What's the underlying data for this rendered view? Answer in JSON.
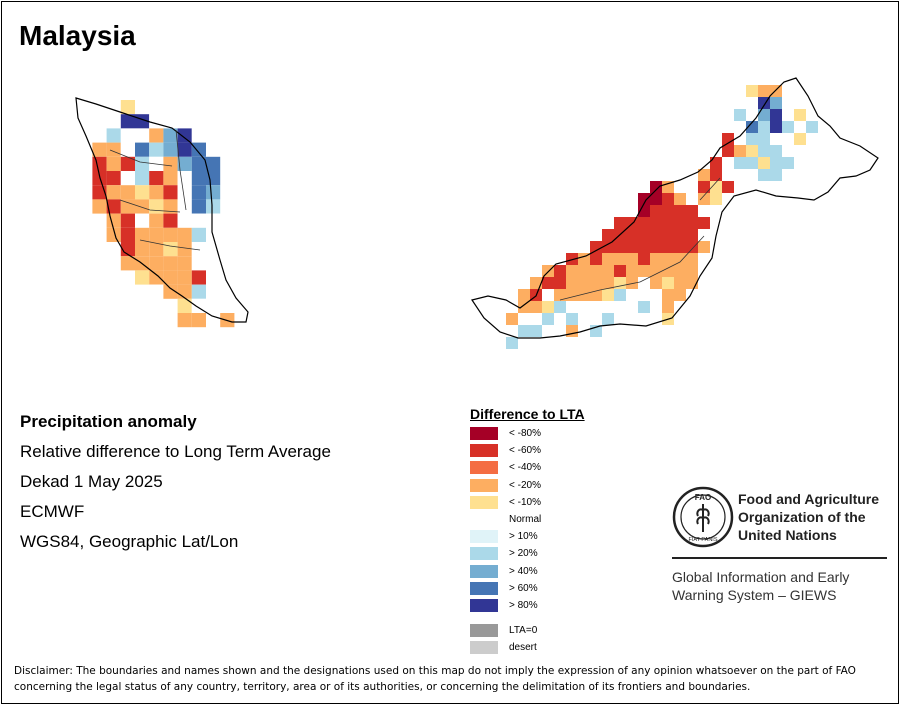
{
  "title": "Malaysia",
  "info": {
    "heading": "Precipitation anomaly",
    "line1": "Relative difference to Long Term Average",
    "line2": "Dekad 1 May 2025",
    "line3": "ECMWF",
    "line4": "WGS84, Geographic Lat/Lon"
  },
  "legend": {
    "title": "Difference to LTA",
    "items": [
      {
        "label": "< -80%",
        "color": "#a50026"
      },
      {
        "label": "< -60%",
        "color": "#d73027"
      },
      {
        "label": "< -40%",
        "color": "#f46d43"
      },
      {
        "label": "< -20%",
        "color": "#fdae61"
      },
      {
        "label": "< -10%",
        "color": "#fee090"
      },
      {
        "label": "Normal",
        "color": "#ffffff"
      },
      {
        "label": "> 10%",
        "color": "#e0f3f8"
      },
      {
        "label": "> 20%",
        "color": "#abd9e9"
      },
      {
        "label": "> 40%",
        "color": "#74add1"
      },
      {
        "label": "> 60%",
        "color": "#4575b4"
      },
      {
        "label": "> 80%",
        "color": "#313695"
      }
    ],
    "extra": [
      {
        "label": "LTA=0",
        "color": "#999999"
      },
      {
        "label": "desert",
        "color": "#cccccc"
      }
    ]
  },
  "fao": {
    "line1": "Food and Agriculture",
    "line2": "Organization of the",
    "line3": "United Nations",
    "logo_letters": "FAO",
    "logo_motto": "FIAT PANIS"
  },
  "giews": {
    "line1": "Global Information and Early",
    "line2": "Warning System – GIEWS"
  },
  "disclaimer": "Disclaimer: The boundaries and names shown and the designations used on this map do not imply the expression of any opinion whatsoever on the part of FAO concerning the legal status of any country, territory, area or of its authorities, or concerning the delimitation of its frontiers and boundaries.",
  "map": {
    "peninsular_grid": [
      "....YN.......",
      "...NBBNNN....",
      "..NLNNOKBN...",
      "..OONVLKBV...",
      "..RORLNOKVV..",
      "..RRNLRONVV..",
      "..ROOYORNVK..",
      "..OROOYONVL..",
      "...ORNORNNN..",
      "...OROOOOLN..",
      "....ROOYONN..",
      "....OOOOONN..",
      ".....YOOORN..",
      "......NOOLNN.",
      "........YNN..",
      "........OONO."
    ],
    "borneo_grid": [
      ".......................YOO......",
      ".......................NBKN.....",
      "......................LNKBNYN...",
      "......................NVLBLNLNN.",
      ".....................RNLLNNYNNN.",
      ".....................ROYLLNNNN..",
      "....................RNLLYLLNNN..",
      "...................ORNNNLLNN....",
      "...............DO..RYRN.........",
      "..............DDRO.OY..........",
      "..............DRRRRN...........",
      "............RRRRRRRR...........",
      "...........RRRRRRRRN...........",
      "..........RRRRRRRRRO...........",
      "........ROROOOROOOO............",
      "......OROOOOROOOOOO............",
      ".....ORROOOOYONOYOO............",
      "....ORNOOOOYLNNNOO.............",
      "....OOYLNNNNNNLNO..............",
      "...ONNLNLNNLNNNNY..............",
      "..NNLLNNONLNN..................",
      "..NLNNN........................"
    ],
    "palette": {
      "D": "#a50026",
      "R": "#d73027",
      "O": "#fdae61",
      "Y": "#fee090",
      "N": "#ffffff",
      "K": "#74add1",
      "L": "#abd9e9",
      "V": "#4575b4",
      "B": "#313695"
    }
  }
}
